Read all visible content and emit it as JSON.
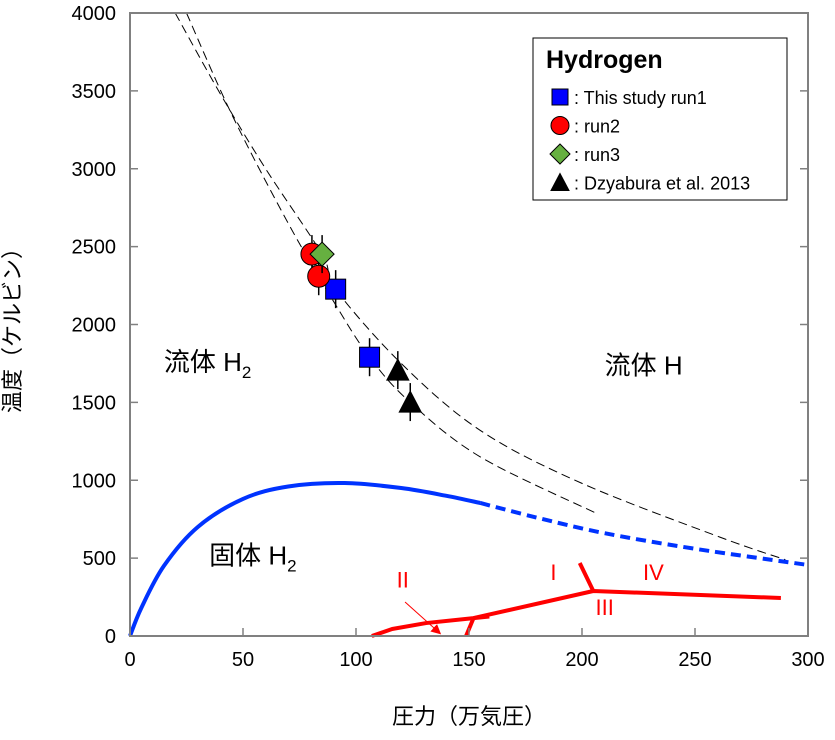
{
  "chart_data": {
    "type": "scatter",
    "title": "",
    "xlabel": "圧力（万気圧）",
    "ylabel": "温度（ケルビン）",
    "xlim": [
      0,
      300
    ],
    "ylim": [
      0,
      4000
    ],
    "xticks": [
      0,
      50,
      100,
      150,
      200,
      250,
      300
    ],
    "yticks": [
      0,
      500,
      1000,
      1500,
      2000,
      2500,
      3000,
      3500,
      4000
    ],
    "grid": false,
    "legend": {
      "title": "Hydrogen",
      "placement": "top-right",
      "entries": [
        {
          "label": ": This study run1",
          "marker": "square",
          "color": "#0000ff"
        },
        {
          "label": ": run2",
          "marker": "circle",
          "color": "#ff0000"
        },
        {
          "label": ": run3",
          "marker": "diamond",
          "color": "#66b040"
        },
        {
          "label": ": Dzyabura et al. 2013",
          "marker": "triangle",
          "color": "#000000"
        }
      ]
    },
    "series": [
      {
        "name": ": This study run1",
        "marker": "square",
        "color": "#0000ff",
        "points": [
          [
            91,
            2227
          ],
          [
            106,
            1790
          ]
        ]
      },
      {
        "name": ": run2",
        "marker": "circle",
        "color": "#ff0000",
        "points": [
          [
            80.5,
            2452
          ],
          [
            83.5,
            2310
          ]
        ]
      },
      {
        "name": ": run3",
        "marker": "diamond",
        "color": "#66b040",
        "points": [
          [
            85,
            2452
          ]
        ]
      },
      {
        "name": ": Dzyabura et al. 2013",
        "marker": "triangle",
        "color": "#000000",
        "points": [
          [
            118.5,
            1707
          ],
          [
            124,
            1502
          ]
        ]
      }
    ],
    "curves": [
      {
        "style": "dashed-thin",
        "color": "#000000",
        "points": [
          [
            20,
            4000
          ],
          [
            40,
            3480
          ],
          [
            60,
            3000
          ],
          [
            85,
            2450
          ],
          [
            91,
            2227
          ],
          [
            120,
            1750
          ],
          [
            155,
            1320
          ],
          [
            200,
            980
          ],
          [
            261,
            635
          ],
          [
            290,
            490
          ]
        ]
      },
      {
        "style": "dashed-thin",
        "color": "#000000",
        "points": [
          [
            25,
            4000
          ],
          [
            45,
            3350
          ],
          [
            70,
            2650
          ],
          [
            90,
            2150
          ],
          [
            106,
            1790
          ],
          [
            124,
            1500
          ],
          [
            155,
            1150
          ],
          [
            206,
            790
          ]
        ]
      },
      {
        "style": "solid-thick",
        "color": "#0033ff",
        "points": [
          [
            0,
            0
          ],
          [
            5,
            180
          ],
          [
            15,
            450
          ],
          [
            30,
            700
          ],
          [
            50,
            880
          ],
          [
            70,
            960
          ],
          [
            95,
            982
          ],
          [
            120,
            950
          ],
          [
            140,
            900
          ],
          [
            155,
            854
          ]
        ]
      },
      {
        "style": "dashed-thick",
        "color": "#0033ff",
        "points": [
          [
            155,
            854
          ],
          [
            180,
            760
          ],
          [
            210,
            660
          ],
          [
            250,
            560
          ],
          [
            300,
            456
          ]
        ]
      },
      {
        "style": "solid-red",
        "color": "#ff0000",
        "points": [
          [
            107,
            0
          ],
          [
            116,
            45
          ],
          [
            131,
            83
          ],
          [
            152,
            115
          ],
          [
            205,
            289
          ],
          [
            288,
            244
          ]
        ]
      },
      {
        "style": "solid-red",
        "color": "#ff0000",
        "points": [
          [
            152,
            115
          ],
          [
            148.7,
            0
          ]
        ]
      },
      {
        "style": "solid-red",
        "color": "#ff0000",
        "points": [
          [
            152,
            115
          ],
          [
            159,
            125
          ]
        ]
      },
      {
        "style": "solid-red",
        "color": "#ff0000",
        "points": [
          [
            205,
            289
          ],
          [
            199,
            469
          ]
        ]
      }
    ],
    "arrow": {
      "color": "#ff0000",
      "from": [
        121.7,
        218
      ],
      "to": [
        137,
        19
      ]
    },
    "annotations": [
      {
        "text": "流体 H",
        "sub": "2",
        "at": [
          15,
          1700
        ],
        "color": "#000000",
        "size": "big"
      },
      {
        "text": "流体 H",
        "sub": "",
        "at": [
          210,
          1680
        ],
        "color": "#000000",
        "size": "big"
      },
      {
        "text": "固体 H",
        "sub": "2",
        "at": [
          35,
          460
        ],
        "color": "#000000",
        "size": "big"
      },
      {
        "text": "II",
        "sub": "",
        "at": [
          118,
          310
        ],
        "color": "#ff0000",
        "size": "med"
      },
      {
        "text": "I",
        "sub": "",
        "at": [
          186,
          360
        ],
        "color": "#ff0000",
        "size": "med"
      },
      {
        "text": "IV",
        "sub": "",
        "at": [
          227,
          360
        ],
        "color": "#ff0000",
        "size": "med"
      },
      {
        "text": "III",
        "sub": "",
        "at": [
          206,
          135
        ],
        "color": "#ff0000",
        "size": "med"
      }
    ]
  }
}
